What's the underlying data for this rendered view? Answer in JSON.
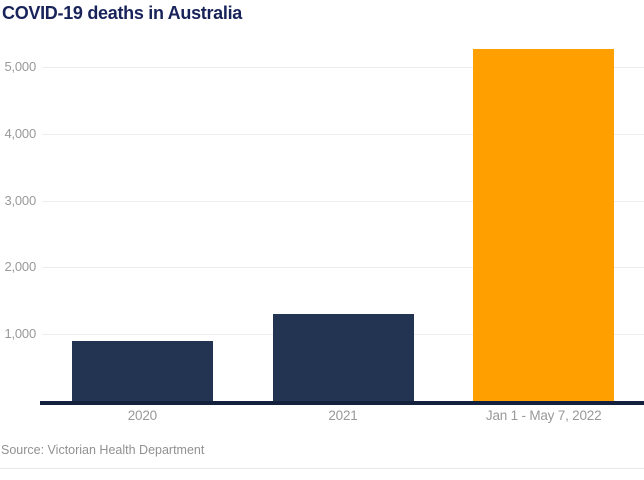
{
  "page": {
    "title": "COVID-19 deaths in Australia",
    "source": "Source: Victorian Health Department"
  },
  "colors": {
    "title": "#18235A",
    "bar_navy": "#233453",
    "bar_orange": "#FF9F00",
    "axis_line": "#14213C",
    "gridline": "#EDEDED",
    "tick_label": "#999999",
    "source_text": "#919191",
    "divider": "#E8E8E8",
    "background": "#FFFFFF"
  },
  "chart_data": {
    "type": "bar",
    "title": "COVID-19 deaths in Australia",
    "categories": [
      "2020",
      "2021",
      "Jan 1 - May 7, 2022"
    ],
    "values": [
      900,
      1300,
      5270
    ],
    "bar_colors": [
      "#233453",
      "#233453",
      "#FF9F00"
    ],
    "yticks": [
      1000,
      2000,
      3000,
      4000,
      5000
    ],
    "ytick_labels": [
      "1,000",
      "2,000",
      "3,000",
      "4,000",
      "5,000"
    ],
    "ylim": [
      0,
      6000
    ],
    "xlabel": "",
    "ylabel": "",
    "grid": "horizontal",
    "legend": "none",
    "source": "Source: Victorian Health Department"
  }
}
